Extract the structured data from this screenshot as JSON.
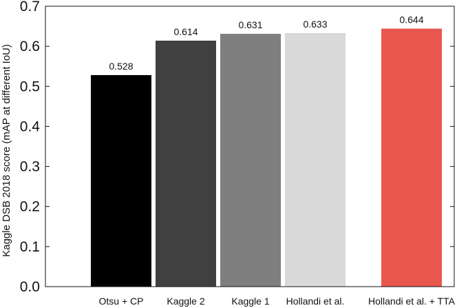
{
  "chart_data": {
    "type": "bar",
    "title": "",
    "xlabel": "",
    "ylabel": "Kaggle DSB 2018 score (mAP at different IoU)",
    "ylim": [
      0.0,
      0.7
    ],
    "yticks": [
      "0.0",
      "0.1",
      "0.2",
      "0.3",
      "0.4",
      "0.5",
      "0.6",
      "0.7"
    ],
    "ytick_values": [
      0.0,
      0.1,
      0.2,
      0.3,
      0.4,
      0.5,
      0.6,
      0.7
    ],
    "grid": false,
    "legend": "none",
    "categories": [
      "Otsu + CP",
      "Kaggle 2",
      "Kaggle 1",
      "Hollandi et al.",
      "Hollandi et al. + TTA"
    ],
    "values": [
      0.528,
      0.614,
      0.631,
      0.633,
      0.644
    ],
    "value_labels": [
      "0.528",
      "0.614",
      "0.631",
      "0.633",
      "0.644"
    ],
    "colors": [
      "#000000",
      "#404040",
      "#7f7f7f",
      "#d9d9d9",
      "#e8574d"
    ],
    "axis_color": "#111111"
  }
}
